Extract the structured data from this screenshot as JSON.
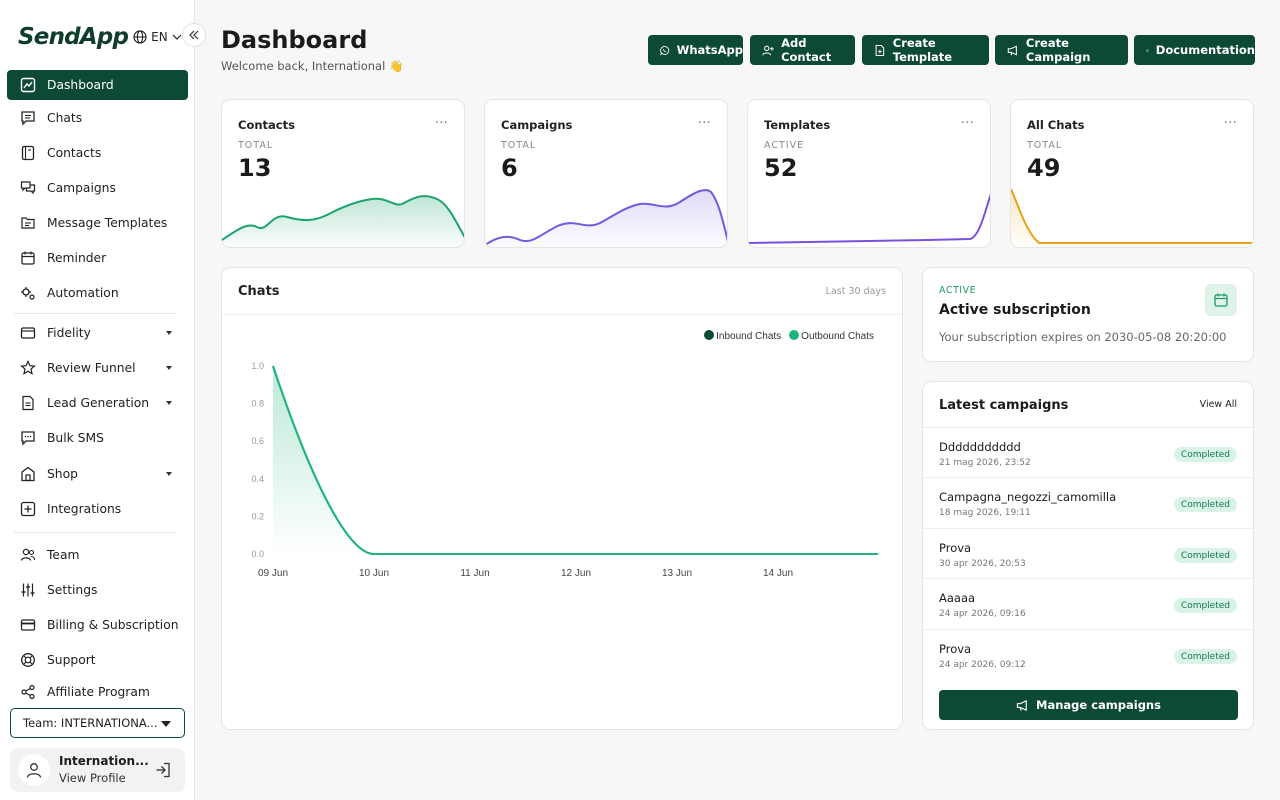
{
  "app": {
    "logo": "SendApp",
    "language": "EN"
  },
  "sidebar": {
    "items": [
      {
        "label": "Dashboard",
        "icon": "chart-line-icon",
        "active": true
      },
      {
        "label": "Chats",
        "icon": "message-icon"
      },
      {
        "label": "Contacts",
        "icon": "address-book-icon"
      },
      {
        "label": "Campaigns",
        "icon": "chat-bubbles-icon"
      },
      {
        "label": "Message Templates",
        "icon": "template-icon"
      },
      {
        "label": "Reminder",
        "icon": "calendar-icon"
      },
      {
        "label": "Automation",
        "icon": "gear-automation-icon"
      },
      {
        "label": "Fidelity",
        "icon": "card-icon",
        "has_submenu": true
      },
      {
        "label": "Review Funnel",
        "icon": "star-icon",
        "has_submenu": true
      },
      {
        "label": "Lead Generation",
        "icon": "document-icon",
        "has_submenu": true
      },
      {
        "label": "Bulk SMS",
        "icon": "sms-icon"
      },
      {
        "label": "Shop",
        "icon": "shop-icon",
        "has_submenu": true
      },
      {
        "label": "Integrations",
        "icon": "plus-square-icon"
      },
      {
        "label": "Team",
        "icon": "team-icon"
      },
      {
        "label": "Settings",
        "icon": "sliders-icon"
      },
      {
        "label": "Billing & Subscription",
        "icon": "credit-card-icon"
      },
      {
        "label": "Support",
        "icon": "lifebuoy-icon"
      },
      {
        "label": "Affiliate Program",
        "icon": "share-icon"
      }
    ],
    "team_select": "Team: INTERNATIONA...",
    "profile": {
      "name": "Internation...",
      "link": "View Profile"
    }
  },
  "header": {
    "title": "Dashboard",
    "subtitle": "Welcome back, International 👋",
    "buttons": [
      "WhatsApp",
      "Add Contact",
      "Create Template",
      "Create Campaign",
      "Documentation"
    ]
  },
  "stats": [
    {
      "label": "Contacts",
      "sublabel": "TOTAL",
      "value": "13",
      "color": "#1aa36b"
    },
    {
      "label": "Campaigns",
      "sublabel": "TOTAL",
      "value": "6",
      "color": "#6b5ce0"
    },
    {
      "label": "Templates",
      "sublabel": "ACTIVE",
      "value": "52",
      "color": "#7a4fe0"
    },
    {
      "label": "All Chats",
      "sublabel": "TOTAL",
      "value": "49",
      "color": "#e8a21a"
    }
  ],
  "chats_chart": {
    "title": "Chats",
    "range": "Last 30 days",
    "chart_data": {
      "type": "line",
      "x": [
        "09 Jun",
        "10 Jun",
        "11 Jun",
        "12 Jun",
        "13 Jun",
        "14 Jun"
      ],
      "series": [
        {
          "name": "Inbound Chats",
          "color": "#0d4a33",
          "values": [
            1.0,
            0,
            0,
            0,
            0,
            0
          ]
        },
        {
          "name": "Outbound Chats",
          "color": "#1fb57a",
          "values": [
            1.0,
            0,
            0,
            0,
            0,
            0
          ]
        }
      ],
      "y_ticks": [
        "1.0",
        "0.8",
        "0.6",
        "0.4",
        "0.2",
        "0.0"
      ],
      "ylim": [
        0,
        1.0
      ],
      "legend": "top-right"
    }
  },
  "subscription": {
    "status": "ACTIVE",
    "title": "Active subscription",
    "text": "Your subscription expires on 2030-05-08 20:20:00"
  },
  "latest_campaigns": {
    "title": "Latest campaigns",
    "view_all": "View All",
    "items": [
      {
        "name": "Ddddddddddd",
        "date": "21 mag 2026, 23:52",
        "status": "Completed"
      },
      {
        "name": "Campagna_negozzi_camomilla",
        "date": "18 mag 2026, 19:11",
        "status": "Completed"
      },
      {
        "name": "Prova",
        "date": "30 apr 2026, 20:53",
        "status": "Completed"
      },
      {
        "name": "Aaaaa",
        "date": "24 apr 2026, 09:16",
        "status": "Completed"
      },
      {
        "name": "Prova",
        "date": "24 apr 2026, 09:12",
        "status": "Completed"
      }
    ],
    "manage_button": "Manage campaigns"
  }
}
